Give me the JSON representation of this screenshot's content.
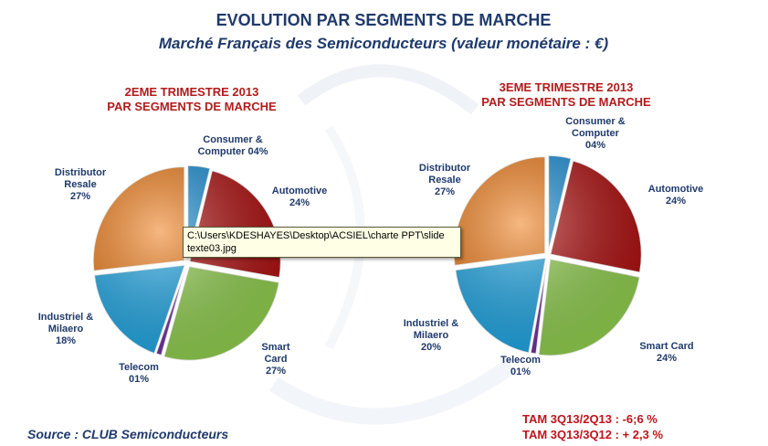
{
  "title": "EVOLUTION PAR SEGMENTS DE MARCHE",
  "subtitle": "Marché Français des Semiconducteurs (valeur monétaire : €)",
  "source": "Source : CLUB Semiconducteurs",
  "tam": {
    "line1": "TAM 3Q13/2Q13 :  -6;6  %",
    "line2": "TAM 3Q13/3Q12 : + 2,3 %"
  },
  "tooltip_text": "C:\\Users\\KDESHAYES\\Desktop\\ACSIEL\\charte PPT\\slide\ntexte03.jpg",
  "colors": {
    "consumer": "#1a8fd6",
    "automotive": "#b01010",
    "smartcard": "#92d050",
    "telecom": "#7030a0",
    "industriel": "#1fa8e6",
    "distributor": "#f07d1a"
  },
  "chart_data": [
    {
      "type": "pie",
      "title": [
        "2EME TRIMESTRE 2013",
        "PAR SEGMENTS DE MARCHE"
      ],
      "slices": [
        {
          "key": "consumer",
          "label": [
            "Consumer &",
            "Computer 04%"
          ],
          "value": 4
        },
        {
          "key": "automotive",
          "label": [
            "Automotive",
            "24%"
          ],
          "value": 24
        },
        {
          "key": "smartcard",
          "label": [
            "Smart",
            "Card",
            "27%"
          ],
          "value": 27
        },
        {
          "key": "telecom",
          "label": [
            "Telecom",
            "01%"
          ],
          "value": 1
        },
        {
          "key": "industriel",
          "label": [
            "Industriel &",
            "Milaero",
            "18%"
          ],
          "value": 18
        },
        {
          "key": "distributor",
          "label": [
            "Distributor",
            "Resale",
            "27%"
          ],
          "value": 27
        }
      ]
    },
    {
      "type": "pie",
      "title": [
        "3EME TRIMESTRE 2013",
        "PAR SEGMENTS DE MARCHE"
      ],
      "slices": [
        {
          "key": "consumer",
          "label": [
            "Consumer &",
            "Computer",
            "04%"
          ],
          "value": 4
        },
        {
          "key": "automotive",
          "label": [
            "Automotive",
            "24%"
          ],
          "value": 24
        },
        {
          "key": "smartcard",
          "label": [
            "Smart Card",
            "24%"
          ],
          "value": 24
        },
        {
          "key": "telecom",
          "label": [
            "Telecom",
            "01%"
          ],
          "value": 1
        },
        {
          "key": "industriel",
          "label": [
            "Industriel &",
            "Milaero",
            "20%"
          ],
          "value": 20
        },
        {
          "key": "distributor",
          "label": [
            "Distributor",
            "Resale",
            "27%"
          ],
          "value": 27
        }
      ]
    }
  ]
}
